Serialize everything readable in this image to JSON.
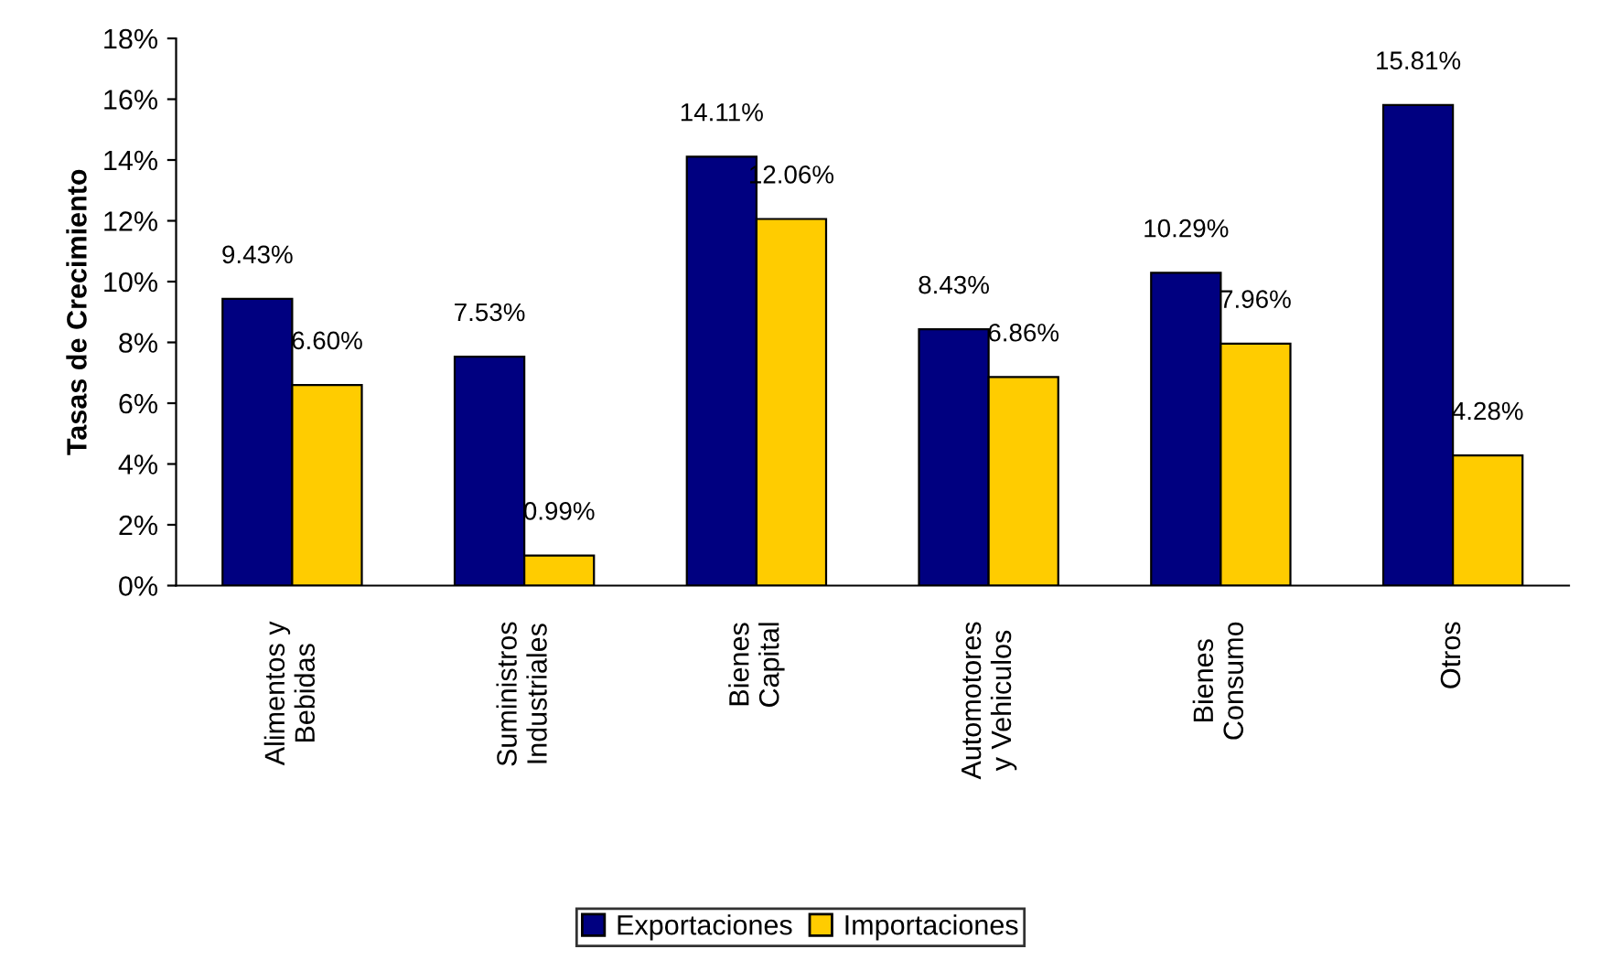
{
  "chart_data": {
    "type": "bar",
    "ylabel": "Tasas de Crecimiento",
    "categories": [
      "Alimentos y\nBebidas",
      "Suministros\nIndustriales",
      "Bienes\nCapital",
      "Automotores\ny Vehiculos",
      "Bienes\nConsumo",
      "Otros"
    ],
    "series": [
      {
        "name": "Exportaciones",
        "color": "#000080",
        "values": [
          9.43,
          7.53,
          14.11,
          8.43,
          10.29,
          15.81
        ],
        "value_labels": [
          "9.43%",
          "7.53%",
          "14.11%",
          "8.43%",
          "10.29%",
          "15.81%"
        ]
      },
      {
        "name": "Importaciones",
        "color": "#ffcc00",
        "values": [
          6.6,
          0.99,
          12.06,
          6.86,
          7.96,
          4.28
        ],
        "value_labels": [
          "6.60%",
          "0.99%",
          "12.06%",
          "6.86%",
          "7.96%",
          "4.28%"
        ]
      }
    ],
    "ylim": [
      0,
      18
    ],
    "yticks": [
      {
        "value": 0,
        "label": "0%"
      },
      {
        "value": 2,
        "label": "2%"
      },
      {
        "value": 4,
        "label": "4%"
      },
      {
        "value": 6,
        "label": "6%"
      },
      {
        "value": 8,
        "label": "8%"
      },
      {
        "value": 10,
        "label": "10%"
      },
      {
        "value": 12,
        "label": "12%"
      },
      {
        "value": 14,
        "label": "14%"
      },
      {
        "value": 16,
        "label": "16%"
      },
      {
        "value": 18,
        "label": "18%"
      }
    ],
    "grid": false,
    "legend": "bottom"
  }
}
